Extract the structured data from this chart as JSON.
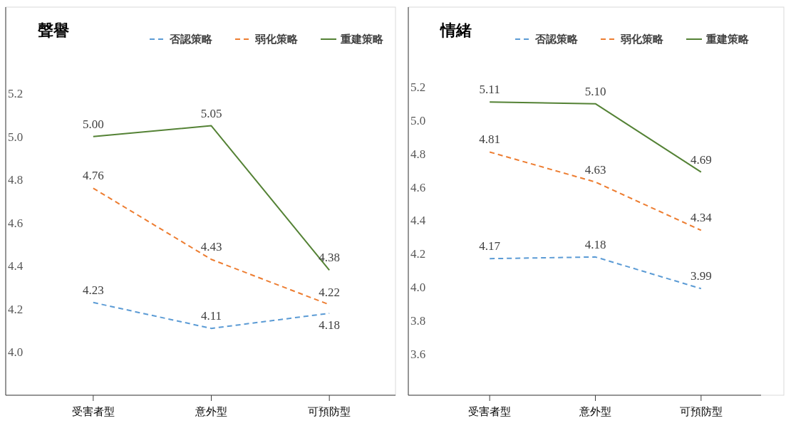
{
  "chart_data": [
    {
      "type": "line",
      "title": "聲譽",
      "categories": [
        "受害者型",
        "意外型",
        "可預防型"
      ],
      "ylim": [
        3.8,
        5.6
      ],
      "yticks": [
        {
          "value": 4,
          "label": "4.0"
        },
        {
          "value": 4.2,
          "label": "4.2"
        },
        {
          "value": 4.4,
          "label": "4.4"
        },
        {
          "value": 4.6,
          "label": "4.6"
        },
        {
          "value": 4.8,
          "label": "4.8"
        },
        {
          "value": 5,
          "label": "5.0"
        },
        {
          "value": 5.2,
          "label": "5.2"
        }
      ],
      "legend": "top right",
      "grid": false,
      "series": [
        {
          "name": "否認策略",
          "color": "#5b9bd5",
          "line_style": "dashed",
          "values": [
            4.23,
            4.11,
            4.18
          ],
          "value_labels": [
            "4.23",
            "4.11",
            "4.18"
          ]
        },
        {
          "name": "弱化策略",
          "color": "#ed7d31",
          "line_style": "dashed",
          "values": [
            4.76,
            4.43,
            4.22
          ],
          "value_labels": [
            "4.76",
            "4.43",
            "4.22"
          ]
        },
        {
          "name": "重建策略",
          "color": "#548235",
          "line_style": "solid",
          "values": [
            5.0,
            5.05,
            4.38
          ],
          "value_labels": [
            "5.00",
            "5.05",
            "4.38"
          ]
        }
      ]
    },
    {
      "type": "line",
      "title": "情緒",
      "categories": [
        "受害者型",
        "意外型",
        "可預防型"
      ],
      "ylim": [
        3.35,
        5.68
      ],
      "yticks": [
        {
          "value": 3.6,
          "label": "3.6"
        },
        {
          "value": 3.8,
          "label": "3.8"
        },
        {
          "value": 4,
          "label": "4.0"
        },
        {
          "value": 4.2,
          "label": "4.2"
        },
        {
          "value": 4.4,
          "label": "4.4"
        },
        {
          "value": 4.6,
          "label": "4.6"
        },
        {
          "value": 4.8,
          "label": "4.8"
        },
        {
          "value": 5,
          "label": "5.0"
        },
        {
          "value": 5.2,
          "label": "5.2"
        }
      ],
      "legend": "top right",
      "grid": false,
      "series": [
        {
          "name": "否認策略",
          "color": "#5b9bd5",
          "line_style": "dashed",
          "values": [
            4.17,
            4.18,
            3.99
          ],
          "value_labels": [
            "4.17",
            "4.18",
            "3.99"
          ]
        },
        {
          "name": "弱化策略",
          "color": "#ed7d31",
          "line_style": "dashed",
          "values": [
            4.81,
            4.63,
            4.34
          ],
          "value_labels": [
            "4.81",
            "4.63",
            "4.34"
          ]
        },
        {
          "name": "重建策略",
          "color": "#548235",
          "line_style": "solid",
          "values": [
            5.11,
            5.1,
            4.69
          ],
          "value_labels": [
            "5.11",
            "5.10",
            "4.69"
          ]
        }
      ]
    }
  ]
}
